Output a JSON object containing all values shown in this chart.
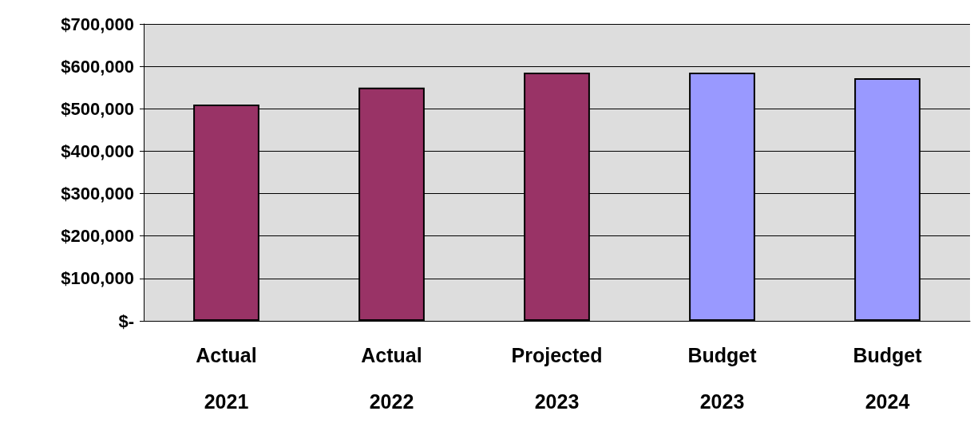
{
  "chart_data": {
    "type": "bar",
    "categories": [
      "Actual 2021",
      "Actual 2022",
      "Projected 2023",
      "Budget 2023",
      "Budget 2024"
    ],
    "values": [
      510000,
      550000,
      585000,
      585000,
      572000
    ],
    "colors": [
      "#993366",
      "#993366",
      "#993366",
      "#9999ff",
      "#9999ff"
    ],
    "ylim": [
      0,
      700000
    ],
    "yticks": [
      {
        "value": 0,
        "label": "$-"
      },
      {
        "value": 100000,
        "label": "$100,000"
      },
      {
        "value": 200000,
        "label": "$200,000"
      },
      {
        "value": 300000,
        "label": "$300,000"
      },
      {
        "value": 400000,
        "label": "$400,000"
      },
      {
        "value": 500000,
        "label": "$500,000"
      },
      {
        "value": 600000,
        "label": "$600,000"
      },
      {
        "value": 700000,
        "label": "$700,000"
      }
    ],
    "grid": "y"
  }
}
